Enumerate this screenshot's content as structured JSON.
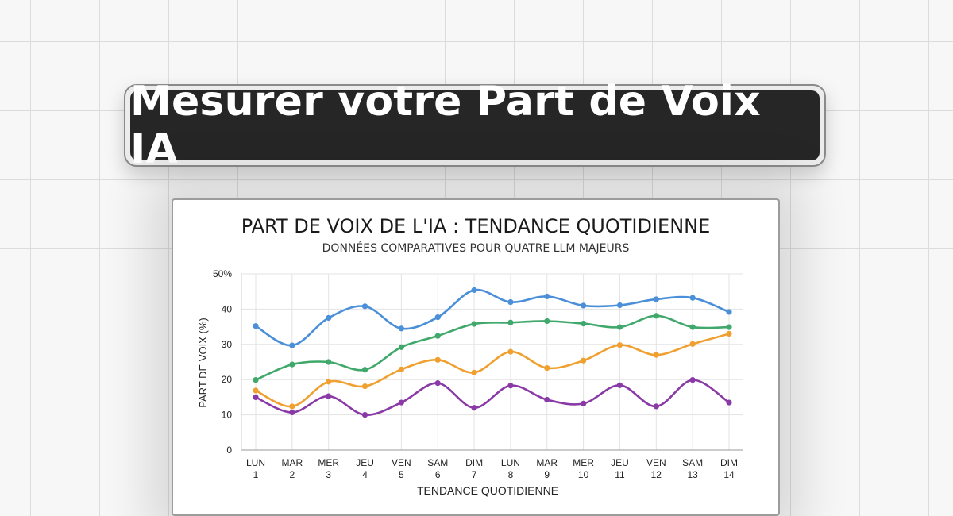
{
  "banner": {
    "title": "Mesurer votre Part de Voix IA"
  },
  "chart_data": {
    "type": "line",
    "title": "PART DE VOIX DE L'IA : TENDANCE QUOTIDIENNE",
    "subtitle": "DONNÉES COMPARATIVES POUR QUATRE LLM MAJEURS",
    "xlabel": "TENDANCE QUOTIDIENNE",
    "ylabel": "PART DE VOIX (%)",
    "ylim": [
      0,
      50
    ],
    "yticks": [
      "0",
      "10",
      "20",
      "30",
      "40",
      "50%"
    ],
    "categories": [
      [
        "LUN",
        "1"
      ],
      [
        "MAR",
        "2"
      ],
      [
        "MER",
        "3"
      ],
      [
        "JEU",
        "4"
      ],
      [
        "VEN",
        "5"
      ],
      [
        "SAM",
        "6"
      ],
      [
        "DIM",
        "7"
      ],
      [
        "LUN",
        "8"
      ],
      [
        "MAR",
        "9"
      ],
      [
        "MER",
        "10"
      ],
      [
        "JEU",
        "11"
      ],
      [
        "VEN",
        "12"
      ],
      [
        "SAM",
        "13"
      ],
      [
        "DIM",
        "14"
      ]
    ],
    "grid": true,
    "series": [
      {
        "color": "#4a8fd8",
        "values": [
          35.2,
          29.7,
          37.5,
          40.8,
          34.5,
          37.7,
          45.4,
          42.0,
          43.6,
          41.0,
          41.1,
          42.8,
          43.2,
          39.2
        ]
      },
      {
        "color": "#3fa86a",
        "values": [
          19.9,
          24.3,
          25.0,
          22.8,
          29.2,
          32.4,
          35.8,
          36.2,
          36.6,
          35.9,
          34.9,
          38.1,
          34.9,
          34.9
        ]
      },
      {
        "color": "#f0a030",
        "values": [
          16.9,
          12.4,
          19.4,
          18.1,
          22.9,
          25.6,
          22.0,
          27.9,
          23.3,
          25.4,
          29.8,
          27.0,
          30.1,
          33.0
        ]
      },
      {
        "color": "#8a3aa6",
        "values": [
          15.0,
          10.7,
          15.3,
          10.0,
          13.5,
          19.0,
          12.0,
          18.3,
          14.3,
          13.2,
          18.4,
          12.4,
          19.9,
          13.5
        ]
      }
    ]
  }
}
